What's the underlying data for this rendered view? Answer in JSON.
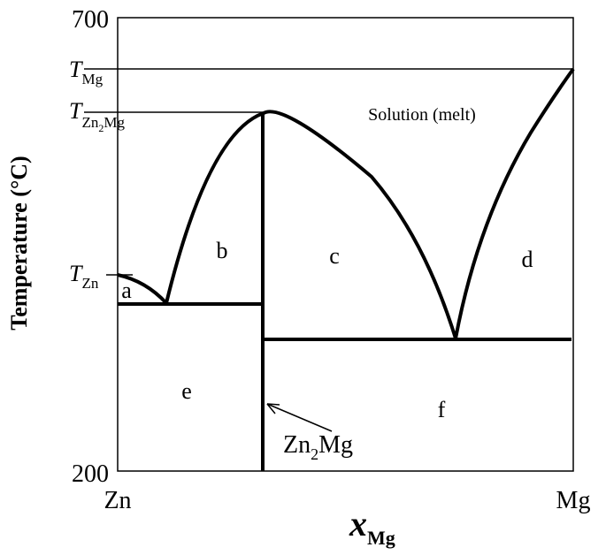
{
  "axes": {
    "y_label": "Temperature (°C)",
    "y_top": "700",
    "y_bottom": "200",
    "x_left": "Zn",
    "x_right": "Mg",
    "x_label": {
      "main": "x",
      "sub": "Mg"
    }
  },
  "temperatures": [
    {
      "main": "T",
      "sub": "Mg"
    },
    {
      "main": "T",
      "sub": "Zn",
      "sub2": "2",
      "sub3": "Mg"
    },
    {
      "main": "T",
      "sub": "Zn"
    }
  ],
  "regions": {
    "melt": "Solution (melt)",
    "a": "a",
    "b": "b",
    "c": "c",
    "d": "d",
    "e": "e",
    "f": "f"
  },
  "compound": {
    "part1": "Zn",
    "sub": "2",
    "part2": "Mg"
  }
}
